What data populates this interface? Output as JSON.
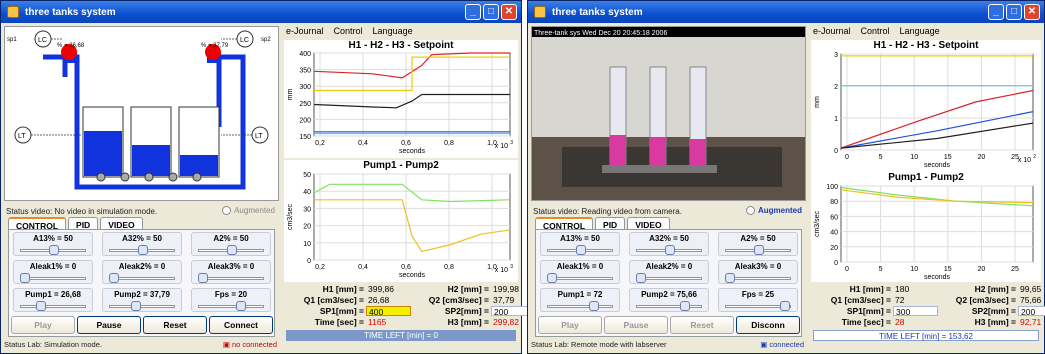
{
  "windows": [
    {
      "title": "three tanks system",
      "menu": [
        "e-Journal",
        "Control",
        "Language"
      ],
      "diagram": {
        "sp_left": "sp1",
        "sp_right": "sp2",
        "lc": "LC",
        "lt": "LT",
        "pct_left": "% = 26,68",
        "pct_right": "% = 37,79"
      },
      "status_video": "Status video: No video in simulation mode.",
      "augmented": "Augmented",
      "tabs": [
        "CONTROL",
        "PID",
        "VIDEO"
      ],
      "sliders": [
        {
          "label": "A13% = 50",
          "level": 0.5
        },
        {
          "label": "A32% = 50",
          "level": 0.5
        },
        {
          "label": "A2% = 50",
          "level": 0.5
        },
        {
          "label": "Aleak1% = 0",
          "level": 0
        },
        {
          "label": "Aleak2% = 0",
          "level": 0
        },
        {
          "label": "Aleak3% = 0",
          "level": 0
        },
        {
          "label": "Pump1 = 26,68",
          "level": 0.27
        },
        {
          "label": "Pump2 = 37,79",
          "level": 0.38
        },
        {
          "label": "Fps = 20",
          "level": 0.65
        }
      ],
      "buttons": [
        "Play",
        "Pause",
        "Reset",
        "Connect"
      ],
      "status_lab": "Status Lab: Simulation mode.",
      "connection": "no connected",
      "chart1": {
        "title": "H1 - H2 - H3 - Setpoint",
        "ylabel": "mm",
        "xlabel": "seconds",
        "yticks": [
          "400",
          "350",
          "300",
          "250",
          "200",
          "150"
        ],
        "xticks": [
          "0,2",
          "0,4",
          "0,6",
          "0,8",
          "1,0"
        ],
        "exp": "x 10",
        "exp_sup": "3"
      },
      "chart2": {
        "title": "Pump1 - Pump2",
        "ylabel": "cm3/sec",
        "xlabel": "seconds",
        "yticks": [
          "50",
          "40",
          "30",
          "20",
          "10",
          "0"
        ],
        "xticks": [
          "0,2",
          "0,4",
          "0,6",
          "0,8",
          "1,0"
        ],
        "exp": "x 10",
        "exp_sup": "3"
      },
      "info": {
        "h1_lbl": "H1 [mm] =",
        "h1": "399,86",
        "h2_lbl": "H2 [mm] =",
        "h2": "199,98",
        "q1_lbl": "Q1 [cm3/sec] =",
        "q1": "26,68",
        "q2_lbl": "Q2 [cm3/sec] =",
        "q2": "37,79",
        "sp1_lbl": "SP1[mm] =",
        "sp1": "400",
        "sp2_lbl": "SP2[mm] =",
        "sp2": "200",
        "time_lbl": "Time [sec] =",
        "time": "1165",
        "h3_lbl": "H3 [mm] =",
        "h3": "299,82"
      },
      "time_left": "TIME LEFT [min] = 0"
    },
    {
      "title": "three tanks system",
      "menu": [
        "e-Journal",
        "Control",
        "Language"
      ],
      "video_caption": "Three-tank sys Wed Dec 20 20:45:18 2006",
      "status_video": "Status video: Reading video from camera.",
      "augmented": "Augmented",
      "tabs": [
        "CONTROL",
        "PID",
        "VIDEO"
      ],
      "sliders": [
        {
          "label": "A13% = 50",
          "level": 0.5
        },
        {
          "label": "A32% = 50",
          "level": 0.5
        },
        {
          "label": "A2% = 50",
          "level": 0.5
        },
        {
          "label": "Aleak1% = 0",
          "level": 0
        },
        {
          "label": "Aleak2% = 0",
          "level": 0
        },
        {
          "label": "Aleak3% = 0",
          "level": 0
        },
        {
          "label": "Pump1 = 72",
          "level": 0.72
        },
        {
          "label": "Pump2 = 75,66",
          "level": 0.76
        },
        {
          "label": "Fps = 25",
          "level": 0.95
        }
      ],
      "buttons": [
        "Play",
        "Pause",
        "Reset",
        "Disconn"
      ],
      "status_lab": "Status Lab: Remote mode with labserver",
      "connection": "connected",
      "chart1": {
        "title": "H1 - H2 - H3 - Setpoint",
        "ylabel": "mm",
        "xlabel": "seconds",
        "yticks": [
          "3",
          "2",
          "1",
          "0"
        ],
        "xticks": [
          "0",
          "5",
          "10",
          "15",
          "20",
          "25"
        ],
        "exp": "x 10",
        "exp_sup": "2"
      },
      "chart2": {
        "title": "Pump1 - Pump2",
        "ylabel": "cm3/sec",
        "xlabel": "seconds",
        "yticks": [
          "100",
          "80",
          "60",
          "40",
          "20",
          "0"
        ],
        "xticks": [
          "0",
          "5",
          "10",
          "15",
          "20",
          "25"
        ]
      },
      "info": {
        "h1_lbl": "H1 [mm] =",
        "h1": "180",
        "h2_lbl": "H2 [mm] =",
        "h2": "99,65",
        "q1_lbl": "Q1 [cm3/sec] =",
        "q1": "72",
        "q2_lbl": "Q2 [cm3/sec] =",
        "q2": "75,66",
        "sp1_lbl": "SP1[mm] =",
        "sp1": "300",
        "sp2_lbl": "SP2[mm] =",
        "sp2": "200",
        "time_lbl": "Time [sec] =",
        "time": "28",
        "h3_lbl": "H3 [mm] =",
        "h3": "92,71"
      },
      "time_left": "TIME LEFT [min] = 153,62"
    }
  ],
  "colors": {
    "water": "#1133dd",
    "setpoint": "#f0d000",
    "h1": "#e0202a",
    "h2": "#202020",
    "h3": "#2050e0",
    "pump1": "#80e060",
    "pump2": "#f0c020",
    "cyan": "#40d0f0"
  }
}
